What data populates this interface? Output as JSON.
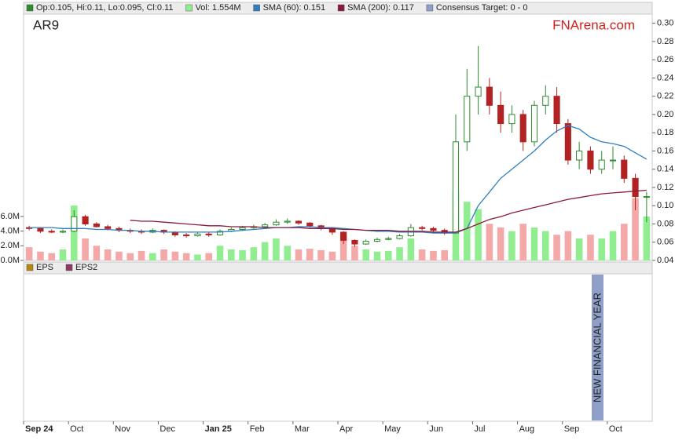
{
  "chart_data": {
    "type": "candlestick",
    "ticker": "AR9",
    "brand": "FNArena.com",
    "ohlc_legend": {
      "name": "Op:0.105, Hi:0.11, Lo:0.095, Cl:0.11",
      "color": "#2e8b2e"
    },
    "consensus_legend": {
      "name": "Consensus Target: 0 - 0",
      "color": "#8f9fc8"
    },
    "categories": [
      "Sep 24",
      null,
      null,
      null,
      "Oct",
      null,
      null,
      null,
      "Nov",
      null,
      null,
      null,
      "Dec",
      null,
      null,
      null,
      "Jan 25",
      null,
      null,
      null,
      "Feb",
      null,
      null,
      null,
      "Mar",
      null,
      null,
      null,
      "Apr",
      null,
      null,
      null,
      "May",
      null,
      null,
      null,
      "Jun",
      null,
      null,
      null,
      "Jul",
      null,
      null,
      null,
      "Aug",
      null,
      null,
      null,
      "Sep",
      null,
      null,
      null,
      "Oct",
      null,
      null,
      null
    ],
    "ohlc": [
      [
        0.076,
        0.078,
        0.073,
        0.075
      ],
      [
        0.075,
        0.076,
        0.07,
        0.072
      ],
      [
        0.072,
        0.074,
        0.07,
        0.071
      ],
      [
        0.071,
        0.074,
        0.07,
        0.072
      ],
      [
        0.072,
        0.095,
        0.071,
        0.088
      ],
      [
        0.088,
        0.09,
        0.078,
        0.08
      ],
      [
        0.08,
        0.082,
        0.076,
        0.077
      ],
      [
        0.077,
        0.079,
        0.073,
        0.075
      ],
      [
        0.075,
        0.077,
        0.071,
        0.073
      ],
      [
        0.073,
        0.075,
        0.07,
        0.072
      ],
      [
        0.072,
        0.074,
        0.069,
        0.071
      ],
      [
        0.071,
        0.075,
        0.07,
        0.073
      ],
      [
        0.073,
        0.074,
        0.069,
        0.071
      ],
      [
        0.071,
        0.072,
        0.066,
        0.068
      ],
      [
        0.068,
        0.07,
        0.065,
        0.067
      ],
      [
        0.067,
        0.071,
        0.066,
        0.069
      ],
      [
        0.069,
        0.071,
        0.066,
        0.068
      ],
      [
        0.068,
        0.074,
        0.067,
        0.072
      ],
      [
        0.072,
        0.076,
        0.071,
        0.074
      ],
      [
        0.074,
        0.078,
        0.073,
        0.076
      ],
      [
        0.076,
        0.079,
        0.074,
        0.077
      ],
      [
        0.077,
        0.081,
        0.076,
        0.079
      ],
      [
        0.079,
        0.085,
        0.078,
        0.082
      ],
      [
        0.082,
        0.086,
        0.08,
        0.083
      ],
      [
        0.083,
        0.084,
        0.079,
        0.081
      ],
      [
        0.081,
        0.082,
        0.076,
        0.078
      ],
      [
        0.078,
        0.079,
        0.073,
        0.075
      ],
      [
        0.075,
        0.076,
        0.068,
        0.071
      ],
      [
        0.071,
        0.072,
        0.058,
        0.062
      ],
      [
        0.062,
        0.063,
        0.055,
        0.058
      ],
      [
        0.058,
        0.063,
        0.057,
        0.061
      ],
      [
        0.061,
        0.065,
        0.06,
        0.063
      ],
      [
        0.063,
        0.066,
        0.062,
        0.064
      ],
      [
        0.064,
        0.069,
        0.063,
        0.067
      ],
      [
        0.067,
        0.08,
        0.066,
        0.076
      ],
      [
        0.076,
        0.078,
        0.073,
        0.075
      ],
      [
        0.075,
        0.077,
        0.071,
        0.073
      ],
      [
        0.073,
        0.075,
        0.068,
        0.07
      ],
      [
        0.07,
        0.2,
        0.069,
        0.17
      ],
      [
        0.17,
        0.25,
        0.16,
        0.22
      ],
      [
        0.22,
        0.275,
        0.2,
        0.23
      ],
      [
        0.23,
        0.24,
        0.2,
        0.21
      ],
      [
        0.21,
        0.225,
        0.18,
        0.19
      ],
      [
        0.19,
        0.21,
        0.18,
        0.2
      ],
      [
        0.2,
        0.205,
        0.16,
        0.17
      ],
      [
        0.17,
        0.215,
        0.165,
        0.21
      ],
      [
        0.21,
        0.232,
        0.2,
        0.22
      ],
      [
        0.22,
        0.23,
        0.18,
        0.19
      ],
      [
        0.19,
        0.195,
        0.145,
        0.15
      ],
      [
        0.15,
        0.17,
        0.14,
        0.16
      ],
      [
        0.16,
        0.165,
        0.135,
        0.14
      ],
      [
        0.14,
        0.16,
        0.135,
        0.15
      ],
      [
        0.15,
        0.165,
        0.14,
        0.15
      ],
      [
        0.15,
        0.155,
        0.125,
        0.13
      ],
      [
        0.13,
        0.135,
        0.095,
        0.11
      ],
      [
        0.11,
        0.115,
        0.082,
        0.11
      ]
    ],
    "up_color": "#2e8b2e",
    "down_color": "#b22222",
    "ylim": [
      0.04,
      0.31
    ],
    "yticks": [
      0.04,
      0.06,
      0.08,
      {
        "value": 0.1,
        "label": "0.10"
      },
      0.12,
      0.14,
      0.16,
      0.18,
      {
        "value": 0.2,
        "label": "0.20"
      },
      0.22,
      0.24,
      0.26,
      0.28,
      {
        "value": 0.3,
        "label": "0.30"
      }
    ],
    "volume": {
      "name": "Vol: 1.554M",
      "color": "#90ee90",
      "down_color": "#f4a8a8",
      "values": [
        1800000,
        1200000,
        1000000,
        1500000,
        7500000,
        3000000,
        2000000,
        1500000,
        1200000,
        1000000,
        1300000,
        1000000,
        1500000,
        1200000,
        1000000,
        800000,
        1000000,
        2000000,
        1500000,
        1400000,
        1800000,
        2500000,
        3000000,
        2000000,
        1500000,
        1600000,
        1400000,
        1200000,
        3500000,
        2000000,
        1500000,
        1200000,
        1300000,
        1800000,
        3000000,
        1500000,
        1300000,
        1400000,
        9500000,
        8000000,
        7000000,
        5000000,
        4500000,
        4000000,
        5000000,
        4500000,
        4000000,
        3500000,
        4000000,
        3000000,
        3500000,
        3000000,
        4000000,
        5000000,
        8500000,
        6000000
      ]
    },
    "y2lim": [
      0,
      33600000
    ],
    "y2ticks": [
      {
        "value": 0,
        "label": "0.0M"
      },
      {
        "value": 2000000,
        "label": "2.0M"
      },
      {
        "value": 4000000,
        "label": "4.0M"
      },
      {
        "value": 6000000,
        "label": "6.0M"
      }
    ],
    "series": [
      {
        "name": "SMA (60): 0.151",
        "color": "#2f7fbf",
        "values": [
          0.076,
          0.076,
          0.076,
          0.075,
          0.075,
          0.075,
          0.074,
          0.074,
          0.073,
          0.073,
          0.072,
          0.072,
          0.071,
          0.071,
          0.071,
          0.071,
          0.071,
          0.071,
          0.072,
          0.073,
          0.074,
          0.075,
          0.076,
          0.076,
          0.077,
          0.077,
          0.076,
          0.076,
          0.075,
          0.074,
          0.073,
          0.072,
          0.072,
          0.071,
          0.071,
          0.071,
          0.07,
          0.07,
          0.07,
          0.075,
          0.1,
          0.115,
          0.13,
          0.14,
          0.15,
          0.16,
          0.172,
          0.182,
          0.188,
          0.184,
          0.175,
          0.17,
          0.168,
          0.165,
          0.158,
          0.151
        ]
      },
      {
        "name": "SMA (200): 0.117",
        "color": "#8b1a3a",
        "values": [
          null,
          null,
          null,
          null,
          null,
          null,
          null,
          null,
          null,
          0.084,
          0.083,
          0.083,
          0.082,
          0.081,
          0.08,
          0.079,
          0.078,
          0.078,
          0.077,
          0.077,
          0.077,
          0.076,
          0.076,
          0.076,
          0.076,
          0.075,
          0.075,
          0.075,
          0.074,
          0.074,
          0.073,
          0.073,
          0.073,
          0.072,
          0.072,
          0.072,
          0.071,
          0.071,
          0.071,
          0.075,
          0.08,
          0.085,
          0.088,
          0.092,
          0.095,
          0.098,
          0.101,
          0.104,
          0.107,
          0.109,
          0.111,
          0.113,
          0.114,
          0.115,
          0.116,
          0.117
        ]
      }
    ],
    "lower_panel": {
      "legend": [
        {
          "name": "EPS",
          "color": "#b8860b"
        },
        {
          "name": "EPS2",
          "color": "#8b3a62"
        }
      ],
      "annotation": "NEW FINANCIAL YEAR",
      "annotation_color": "#8f9fc8"
    }
  }
}
